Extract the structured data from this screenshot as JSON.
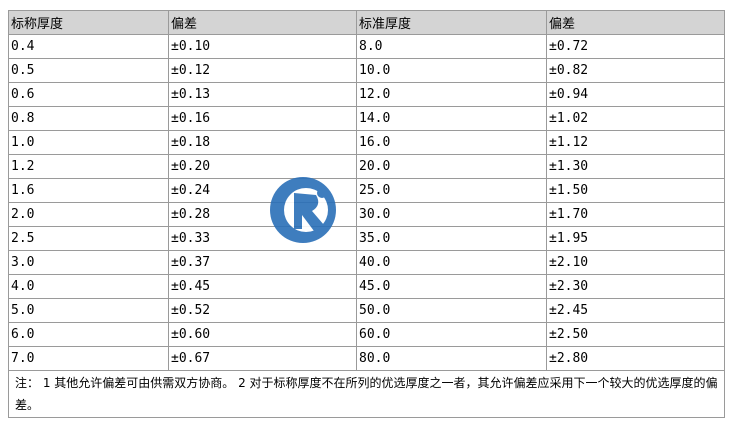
{
  "table": {
    "header": [
      "标称厚度",
      "偏差",
      "标准厚度",
      "偏差"
    ],
    "rows": [
      [
        "0.4",
        "±0.10",
        "8.0",
        "±0.72"
      ],
      [
        "0.5",
        "±0.12",
        "10.0",
        "±0.82"
      ],
      [
        "0.6",
        "±0.13",
        "12.0",
        "±0.94"
      ],
      [
        "0.8",
        "±0.16",
        "14.0",
        "±1.02"
      ],
      [
        "1.0",
        "±0.18",
        "16.0",
        "±1.12"
      ],
      [
        "1.2",
        "±0.20",
        "20.0",
        "±1.30"
      ],
      [
        "1.6",
        "±0.24",
        "25.0",
        "±1.50"
      ],
      [
        "2.0",
        "±0.28",
        "30.0",
        "±1.70"
      ],
      [
        "2.5",
        "±0.33",
        "35.0",
        "±1.95"
      ],
      [
        "3.0",
        "±0.37",
        "40.0",
        "±2.10"
      ],
      [
        "4.0",
        "±0.45",
        "45.0",
        "±2.30"
      ],
      [
        "5.0",
        "±0.52",
        "50.0",
        "±2.45"
      ],
      [
        "6.0",
        "±0.60",
        "60.0",
        "±2.50"
      ],
      [
        "7.0",
        "±0.67",
        "80.0",
        "±2.80"
      ]
    ],
    "note": "注： 1 其他允许偏差可由供需双方协商。 2 对于标称厚度不在所列的优选厚度之一者，其允许偏差应采用下一个较大的优选厚度的偏差。"
  }
}
